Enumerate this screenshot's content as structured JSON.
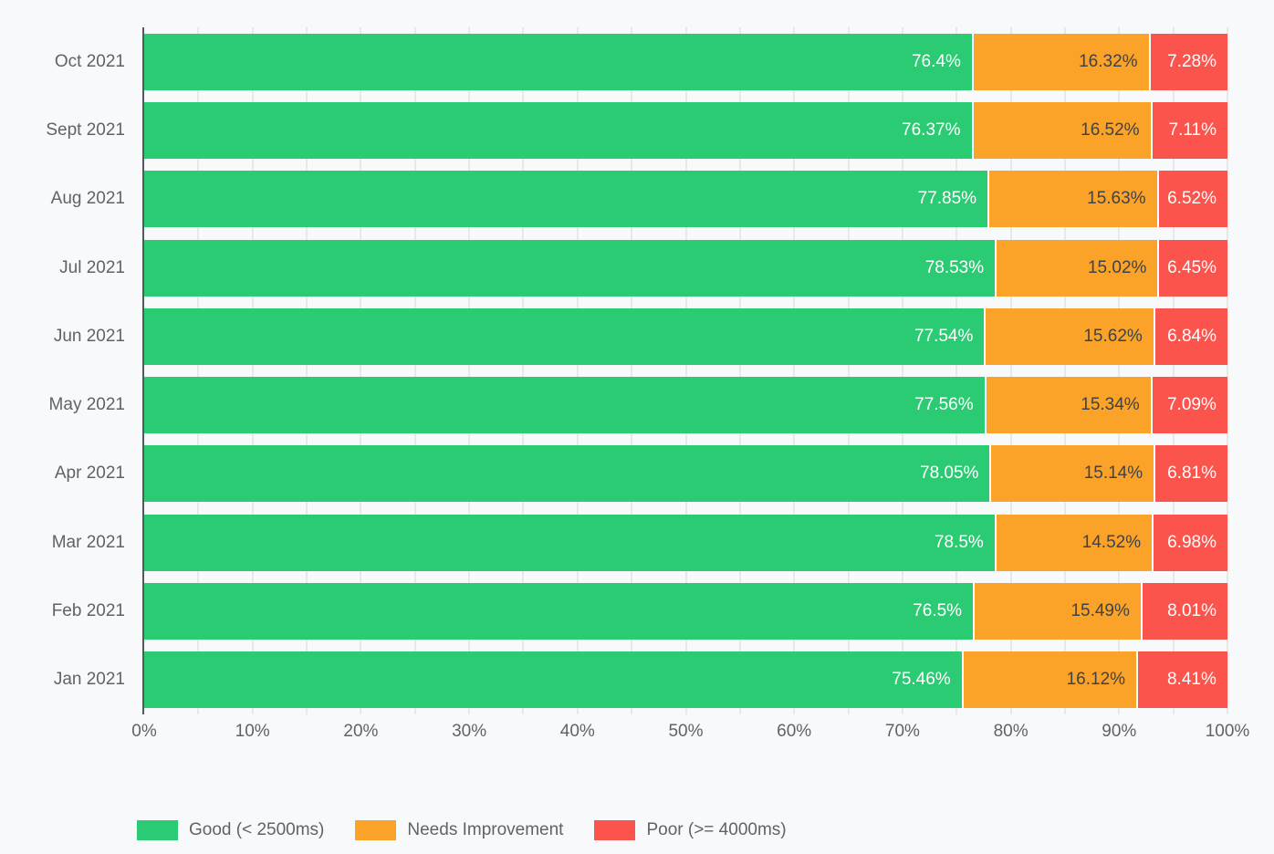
{
  "chart_data": {
    "type": "bar",
    "orientation": "horizontal",
    "stacked": true,
    "grid": true,
    "legend_position": "bottom",
    "categories": [
      "Oct 2021",
      "Sept 2021",
      "Aug 2021",
      "Jul 2021",
      "Jun 2021",
      "May 2021",
      "Apr 2021",
      "Mar 2021",
      "Feb 2021",
      "Jan 2021"
    ],
    "series": [
      {
        "name": "Good (< 2500ms)",
        "color": "#2BCB73",
        "label_color": "#FFFFFF",
        "values": [
          76.4,
          76.37,
          77.85,
          78.53,
          77.54,
          77.56,
          78.05,
          78.5,
          76.5,
          75.46
        ],
        "labels": [
          "76.4%",
          "76.37%",
          "77.85%",
          "78.53%",
          "77.54%",
          "77.56%",
          "78.05%",
          "78.5%",
          "76.5%",
          "75.46%"
        ]
      },
      {
        "name": "Needs Improvement",
        "color": "#FBA229",
        "label_color": "#3F4347",
        "values": [
          16.32,
          16.52,
          15.63,
          15.02,
          15.62,
          15.34,
          15.14,
          14.52,
          15.49,
          16.12
        ],
        "labels": [
          "16.32%",
          "16.52%",
          "15.63%",
          "15.02%",
          "15.62%",
          "15.34%",
          "15.14%",
          "14.52%",
          "15.49%",
          "16.12%"
        ]
      },
      {
        "name": "Poor (>= 4000ms)",
        "color": "#FA544D",
        "label_color": "#FFFFFF",
        "values": [
          7.28,
          7.11,
          6.52,
          6.45,
          6.84,
          7.09,
          6.81,
          6.98,
          8.01,
          8.41
        ],
        "labels": [
          "7.28%",
          "7.11%",
          "6.52%",
          "6.45%",
          "6.84%",
          "7.09%",
          "6.81%",
          "6.98%",
          "8.01%",
          "8.41%"
        ]
      }
    ],
    "x_axis": {
      "range": [
        0,
        100
      ],
      "tick_labels": [
        "0%",
        "10%",
        "20%",
        "30%",
        "40%",
        "50%",
        "60%",
        "70%",
        "80%",
        "90%",
        "100%"
      ],
      "tick_step": 10,
      "gridline_step": 5
    },
    "colors": {
      "background": "#F8F9FB",
      "gridline": "#E6E8EA",
      "axis_line": "#54575C",
      "axis_text": "#5F6368",
      "legend_text": "#5F6368"
    }
  }
}
